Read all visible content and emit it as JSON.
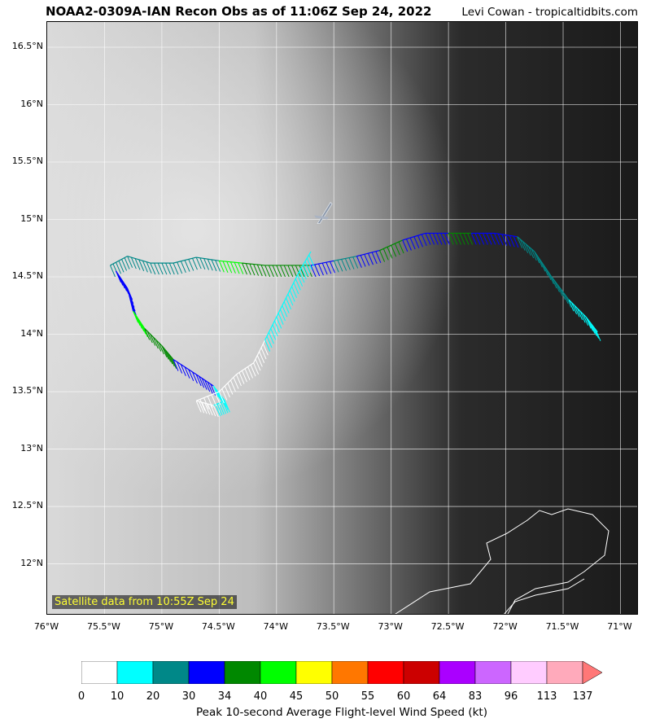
{
  "title": {
    "main": "NOAA2-0309A-IAN Recon Obs as of 11:06Z Sep 24, 2022",
    "credit": "Levi Cowan - tropicaltidbits.com"
  },
  "map": {
    "satellite_label": "Satellite data from 10:55Z Sep 24",
    "lat_ticks": [
      "16.5°N",
      "16°N",
      "15.5°N",
      "15°N",
      "14.5°N",
      "14°N",
      "13.5°N",
      "13°N",
      "12.5°N",
      "12°N"
    ],
    "lon_ticks": [
      "76°W",
      "75.5°W",
      "75°W",
      "74.5°W",
      "74°W",
      "73.5°W",
      "73°W",
      "72.5°W",
      "72°W",
      "71.5°W",
      "71°W"
    ],
    "lat_values": [
      16.5,
      16.0,
      15.5,
      15.0,
      14.5,
      14.0,
      13.5,
      13.0,
      12.5,
      12.0
    ],
    "lon_values": [
      -76,
      -75.5,
      -75,
      -74.5,
      -74,
      -73.5,
      -73,
      -72.5,
      -72,
      -71.5,
      -71
    ],
    "extent": {
      "lon_min": -76.0,
      "lon_max": -70.84,
      "lat_min": 11.55,
      "lat_max": 16.72
    },
    "flight_track": [
      {
        "lon": -75.45,
        "lat": 14.6,
        "color": "#008888"
      },
      {
        "lon": -75.3,
        "lat": 14.68,
        "color": "#008888"
      },
      {
        "lon": -75.1,
        "lat": 14.62,
        "color": "#008888"
      },
      {
        "lon": -74.9,
        "lat": 14.62,
        "color": "#008888"
      },
      {
        "lon": -74.7,
        "lat": 14.67,
        "color": "#008888"
      },
      {
        "lon": -74.5,
        "lat": 14.64,
        "color": "#00ff00"
      },
      {
        "lon": -74.3,
        "lat": 14.62,
        "color": "#008800"
      },
      {
        "lon": -74.1,
        "lat": 14.6,
        "color": "#008800"
      },
      {
        "lon": -73.9,
        "lat": 14.6,
        "color": "#008800"
      },
      {
        "lon": -73.7,
        "lat": 14.6,
        "color": "#0000ff"
      },
      {
        "lon": -73.5,
        "lat": 14.64,
        "color": "#008888"
      },
      {
        "lon": -73.3,
        "lat": 14.68,
        "color": "#0000ff"
      },
      {
        "lon": -73.1,
        "lat": 14.73,
        "color": "#008800"
      },
      {
        "lon": -72.9,
        "lat": 14.82,
        "color": "#0000ff"
      },
      {
        "lon": -72.7,
        "lat": 14.88,
        "color": "#0000ff"
      },
      {
        "lon": -72.5,
        "lat": 14.88,
        "color": "#008800"
      },
      {
        "lon": -72.3,
        "lat": 14.88,
        "color": "#0000ff"
      },
      {
        "lon": -72.1,
        "lat": 14.88,
        "color": "#0000ff"
      },
      {
        "lon": -71.9,
        "lat": 14.85,
        "color": "#008888"
      },
      {
        "lon": -71.75,
        "lat": 14.72,
        "color": "#008888"
      },
      {
        "lon": -71.6,
        "lat": 14.5,
        "color": "#008888"
      },
      {
        "lon": -71.45,
        "lat": 14.3,
        "color": "#00ffff"
      },
      {
        "lon": -71.3,
        "lat": 14.15,
        "color": "#00ffff"
      },
      {
        "lon": -71.2,
        "lat": 14.02,
        "color": "#008888"
      }
    ],
    "south_leg": [
      {
        "lon": -75.4,
        "lat": 14.55,
        "color": "#0000ff"
      },
      {
        "lon": -75.3,
        "lat": 14.4,
        "color": "#0000ff"
      },
      {
        "lon": -75.25,
        "lat": 14.2,
        "color": "#00ff00"
      },
      {
        "lon": -75.15,
        "lat": 14.05,
        "color": "#008800"
      },
      {
        "lon": -75.0,
        "lat": 13.9,
        "color": "#008800"
      },
      {
        "lon": -74.9,
        "lat": 13.78,
        "color": "#0000ff"
      },
      {
        "lon": -74.7,
        "lat": 13.65,
        "color": "#0000ff"
      },
      {
        "lon": -74.55,
        "lat": 13.55,
        "color": "#00ffff"
      },
      {
        "lon": -74.45,
        "lat": 13.42,
        "color": "#00ffff"
      },
      {
        "lon": -74.55,
        "lat": 13.38,
        "color": "#ffffff"
      },
      {
        "lon": -74.7,
        "lat": 13.42,
        "color": "#ffffff"
      },
      {
        "lon": -74.5,
        "lat": 13.5,
        "color": "#ffffff"
      },
      {
        "lon": -74.35,
        "lat": 13.65,
        "color": "#ffffff"
      },
      {
        "lon": -74.2,
        "lat": 13.75,
        "color": "#ffffff"
      },
      {
        "lon": -74.1,
        "lat": 13.95,
        "color": "#00ffff"
      },
      {
        "lon": -74.0,
        "lat": 14.15,
        "color": "#00ffff"
      },
      {
        "lon": -73.9,
        "lat": 14.35,
        "color": "#00ffff"
      },
      {
        "lon": -73.8,
        "lat": 14.55,
        "color": "#00ffff"
      },
      {
        "lon": -73.7,
        "lat": 14.72,
        "color": "#008888"
      }
    ],
    "aircraft": {
      "lon": -73.6,
      "lat": 15.05
    }
  },
  "colorbar": {
    "title": "Peak 10-second Average Flight-level Wind Speed (kt)",
    "labels": [
      "0",
      "10",
      "20",
      "30",
      "34",
      "40",
      "45",
      "50",
      "55",
      "60",
      "64",
      "83",
      "96",
      "113",
      "137"
    ],
    "colors": [
      "#ffffff",
      "#00ffff",
      "#008888",
      "#0000ff",
      "#008800",
      "#00ff00",
      "#ffff00",
      "#ff7700",
      "#ff0000",
      "#cc0000",
      "#aa00ff",
      "#cc66ff",
      "#ffccff",
      "#ffaabb",
      "#ff7777"
    ]
  }
}
